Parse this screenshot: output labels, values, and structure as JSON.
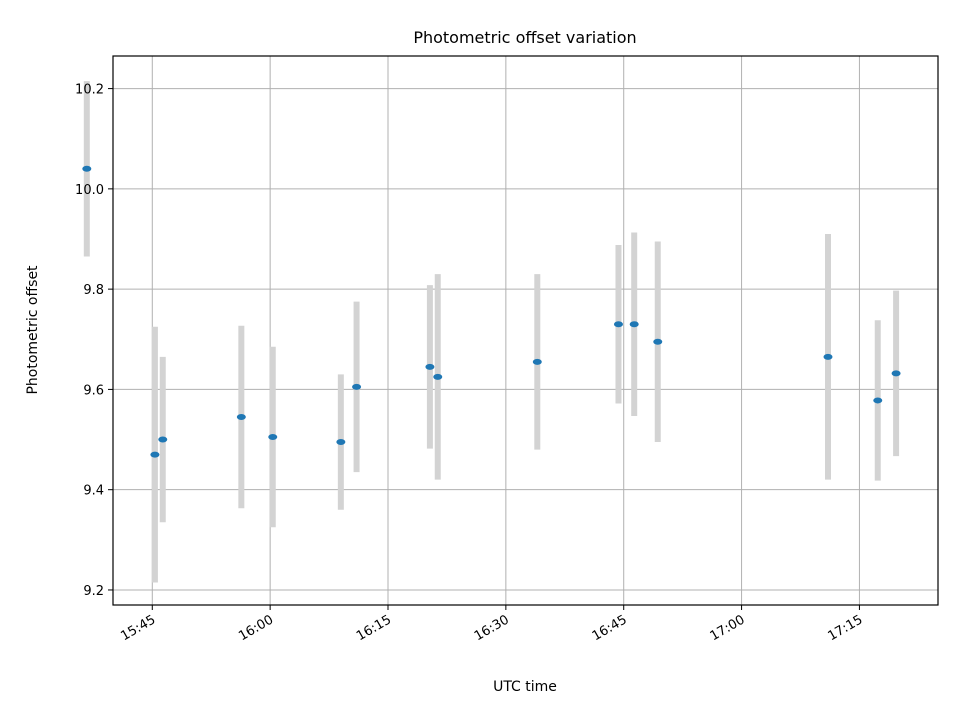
{
  "chart_data": {
    "type": "scatter",
    "title": "Photometric offset variation",
    "xlabel": "UTC time",
    "ylabel": "Photometric offset",
    "xlim": [
      "15:40",
      "17:25"
    ],
    "ylim": [
      9.17,
      10.265
    ],
    "x_ticks": [
      "15:45",
      "16:00",
      "16:15",
      "16:30",
      "16:45",
      "17:00",
      "17:15"
    ],
    "y_ticks": [
      "9.2",
      "9.4",
      "9.6",
      "9.8",
      "10.0",
      "10.2"
    ],
    "grid": true,
    "legend": "none",
    "colors": {
      "points": "#1f77b4",
      "errorbars": "#d3d3d3",
      "grid": "#b0b0b0"
    },
    "points": [
      {
        "x": "15:36:40",
        "y": 10.04,
        "yerr": 0.175
      },
      {
        "x": "15:45:20",
        "y": 9.47,
        "yerr": 0.255
      },
      {
        "x": "15:46:20",
        "y": 9.5,
        "yerr": 0.165
      },
      {
        "x": "15:56:20",
        "y": 9.545,
        "yerr": 0.182
      },
      {
        "x": "16:00:20",
        "y": 9.505,
        "yerr": 0.18
      },
      {
        "x": "16:09:00",
        "y": 9.495,
        "yerr": 0.135
      },
      {
        "x": "16:11:00",
        "y": 9.605,
        "yerr": 0.17
      },
      {
        "x": "16:20:20",
        "y": 9.645,
        "yerr": 0.163
      },
      {
        "x": "16:21:20",
        "y": 9.625,
        "yerr": 0.205
      },
      {
        "x": "16:34:00",
        "y": 9.655,
        "yerr": 0.175
      },
      {
        "x": "16:44:20",
        "y": 9.73,
        "yerr": 0.158
      },
      {
        "x": "16:46:20",
        "y": 9.73,
        "yerr": 0.183
      },
      {
        "x": "16:49:20",
        "y": 9.695,
        "yerr": 0.2
      },
      {
        "x": "17:11:00",
        "y": 9.665,
        "yerr": 0.245
      },
      {
        "x": "17:17:20",
        "y": 9.578,
        "yerr": 0.16
      },
      {
        "x": "17:19:40",
        "y": 9.632,
        "yerr": 0.165
      }
    ]
  }
}
